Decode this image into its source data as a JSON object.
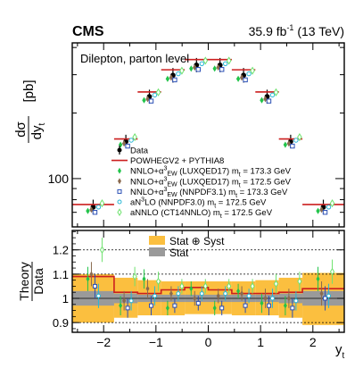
{
  "header": {
    "experiment": "CMS",
    "luminosity_prefix": "35.9 fb",
    "luminosity_exp": "-1",
    "luminosity_suffix": " (13 TeV)"
  },
  "chart_data": [
    {
      "type": "scatter",
      "panel": "main",
      "annotation": "Dilepton, parton level",
      "ylabel_num": "dσ",
      "ylabel_den": "dy",
      "ylabel_den_sub": "t",
      "ylabel_unit": "[pb]",
      "ylim": [
        60,
        420
      ],
      "yscale": "log",
      "yticks": [
        100
      ],
      "xlim": [
        -2.6,
        2.6
      ],
      "bin_edges": [
        -2.6,
        -1.8,
        -1.35,
        -0.9,
        -0.45,
        0.0,
        0.45,
        0.9,
        1.35,
        1.8,
        2.6
      ],
      "bin_centers": [
        -2.2,
        -1.575,
        -1.125,
        -0.675,
        -0.225,
        0.225,
        0.675,
        1.125,
        1.575,
        2.2
      ],
      "series": [
        {
          "name": "Data",
          "marker": "dot",
          "color": "#000000",
          "values": [
            74,
            148,
            238,
            298,
            332,
            332,
            298,
            238,
            148,
            74
          ],
          "err_lo": [
            5,
            10,
            17,
            22,
            24,
            24,
            22,
            17,
            10,
            5
          ],
          "err_hi": [
            6,
            11,
            18,
            24,
            26,
            26,
            24,
            18,
            11,
            6
          ]
        },
        {
          "name": "POWHEGV2 + PYTHIA8",
          "marker": "line",
          "color": "#cc1f1f",
          "values": [
            76,
            152,
            250,
            316,
            352,
            352,
            316,
            250,
            152,
            76
          ]
        },
        {
          "name": "NNLO+α³EW (LUXQED17) mt = 173.3 GeV",
          "marker": "diamond",
          "color": "#22c44a",
          "values": [
            71,
            143,
            229,
            287,
            320,
            320,
            287,
            229,
            143,
            71
          ]
        },
        {
          "name": "NNLO+α³EW (LUXQED17) mt = 172.5 GeV",
          "marker": "diamond",
          "color": "#8a6a4f",
          "values": [
            72,
            145,
            232,
            291,
            324,
            324,
            291,
            232,
            145,
            72
          ]
        },
        {
          "name": "NNLO+α³EW (NNPDF3.1) mt = 173.3 GeV",
          "marker": "open-square",
          "color": "#2a4fb5",
          "values": [
            70,
            141,
            227,
            284,
            317,
            317,
            284,
            227,
            141,
            70
          ]
        },
        {
          "name": "aN³LO (NNPDF3.0) mt = 172.5 GeV",
          "marker": "open-circle",
          "color": "#29b7d6",
          "values": [
            74,
            150,
            242,
            303,
            337,
            337,
            303,
            242,
            150,
            74
          ]
        },
        {
          "name": "aNNLO (CT14NNLO) mt = 172.5 GeV",
          "marker": "open-diamond",
          "color": "#6fe26f",
          "values": [
            77,
            155,
            249,
            313,
            348,
            348,
            313,
            249,
            155,
            77
          ]
        }
      ],
      "legend": [
        {
          "text": "Data",
          "marker": "dot",
          "color": "#000000"
        },
        {
          "text": "POWHEGV2 + PYTHIA8",
          "marker": "line",
          "color": "#cc1f1f"
        },
        {
          "text": "NNLO+α",
          "sup": "3",
          "sub": "EW",
          "rest": " (LUXQED17) m",
          "rsub": "t",
          "tail": " = 173.3 GeV",
          "marker": "diamond",
          "color": "#22c44a"
        },
        {
          "text": "NNLO+α",
          "sup": "3",
          "sub": "EW",
          "rest": " (LUXQED17) m",
          "rsub": "t",
          "tail": " = 172.5 GeV",
          "marker": "diamond",
          "color": "#8a6a4f"
        },
        {
          "text": "NNLO+α",
          "sup": "3",
          "sub": "EW",
          "rest": " (NNPDF3.1) m",
          "rsub": "t",
          "tail": " = 173.3 GeV",
          "marker": "open-square",
          "color": "#2a4fb5"
        },
        {
          "text": "aN",
          "sup": "3",
          "rest": "LO (NNPDF3.0) m",
          "rsub": "t",
          "tail": " = 172.5 GeV",
          "marker": "open-circle",
          "color": "#29b7d6"
        },
        {
          "text": "aNNLO (CT14NNLO) m",
          "rsub": "t",
          "tail": " = 172.5 GeV",
          "marker": "open-diamond",
          "color": "#6fe26f"
        }
      ]
    },
    {
      "type": "scatter",
      "panel": "ratio",
      "ylabel_num": "Theory",
      "ylabel_den": "Data",
      "xlabel": "y",
      "xlabel_sub": "t",
      "ylim": [
        0.86,
        1.28
      ],
      "yticks": [
        "0.9",
        "1",
        "1.1",
        "1.2"
      ],
      "yticks_values": [
        0.9,
        1.0,
        1.1,
        1.2
      ],
      "xticks": [
        "−2",
        "−1",
        "0",
        "1",
        "2"
      ],
      "xticks_values": [
        -2,
        -1,
        0,
        1,
        2
      ],
      "xlim": [
        -2.6,
        2.6
      ],
      "dashed_gridlines": [
        0.9,
        1.1,
        1.2
      ],
      "bin_edges": [
        -2.6,
        -1.8,
        -1.35,
        -0.9,
        -0.45,
        0.0,
        0.45,
        0.9,
        1.35,
        1.8,
        2.6
      ],
      "bin_centers": [
        -2.2,
        -1.575,
        -1.125,
        -0.675,
        -0.225,
        0.225,
        0.675,
        1.125,
        1.575,
        2.2
      ],
      "bands": [
        {
          "name": "Stat ⊕ Syst",
          "color": "#fbbf3f",
          "lo": [
            0.9,
            0.92,
            0.93,
            0.93,
            0.935,
            0.935,
            0.93,
            0.93,
            0.92,
            0.89
          ],
          "hi": [
            1.1,
            1.085,
            1.075,
            1.07,
            1.07,
            1.07,
            1.07,
            1.075,
            1.085,
            1.105
          ]
        },
        {
          "name": "Stat",
          "color": "#9a9a9a",
          "lo": [
            0.97,
            0.98,
            0.985,
            0.985,
            0.985,
            0.985,
            0.985,
            0.985,
            0.98,
            0.97
          ],
          "hi": [
            1.03,
            1.02,
            1.015,
            1.015,
            1.015,
            1.015,
            1.015,
            1.015,
            1.02,
            1.03
          ]
        }
      ],
      "series": [
        {
          "name": "POWHEGV2 + PYTHIA8",
          "marker": "line",
          "color": "#cc1f1f",
          "values": [
            1.09,
            1.025,
            1.02,
            1.035,
            1.045,
            1.035,
            1.02,
            1.02,
            1.025,
            1.04
          ]
        },
        {
          "name": "NNLO+α³EW (LUXQED17) mt = 173.3 GeV",
          "marker": "diamond",
          "color": "#22c44a",
          "values": [
            1.08,
            0.97,
            1.08,
            0.96,
            1.04,
            0.96,
            1.03,
            0.98,
            0.97,
            1.08
          ],
          "err": [
            0.05,
            0.04,
            0.04,
            0.03,
            0.03,
            0.03,
            0.03,
            0.04,
            0.04,
            0.05
          ]
        },
        {
          "name": "NNLO+α³EW (LUXQED17) mt = 172.5 GeV",
          "marker": "diamond",
          "color": "#8a6a4f",
          "values": [
            1.1,
            0.99,
            1.04,
            1.02,
            1.0,
            1.01,
            1.02,
            1.0,
            1.0,
            1.02
          ],
          "err": [
            0.05,
            0.04,
            0.04,
            0.03,
            0.03,
            0.03,
            0.03,
            0.04,
            0.04,
            0.05
          ]
        },
        {
          "name": "NNLO+α³EW (NNPDF3.1) mt = 173.3 GeV",
          "marker": "open-square",
          "color": "#2a4fb5",
          "values": [
            1.05,
            0.96,
            0.97,
            0.97,
            0.98,
            0.96,
            0.97,
            0.97,
            0.96,
            1.0
          ],
          "err": [
            0.05,
            0.04,
            0.04,
            0.03,
            0.03,
            0.03,
            0.03,
            0.04,
            0.04,
            0.05
          ]
        },
        {
          "name": "aN³LO (NNPDF3.0) mt = 172.5 GeV",
          "marker": "open-circle",
          "color": "#29b7d6",
          "values": [
            1.01,
            0.99,
            1.01,
            1.02,
            1.02,
            1.02,
            1.01,
            1.0,
            0.99,
            1.01
          ],
          "err": [
            0.05,
            0.04,
            0.04,
            0.03,
            0.03,
            0.03,
            0.03,
            0.04,
            0.04,
            0.05
          ]
        },
        {
          "name": "aNNLO (CT14NNLO) mt = 172.5 GeV",
          "marker": "open-diamond",
          "color": "#6fe26f",
          "values": [
            1.2,
            1.09,
            1.07,
            1.05,
            1.05,
            1.05,
            1.05,
            1.06,
            1.07,
            1.11
          ],
          "err": [
            0.05,
            0.04,
            0.04,
            0.03,
            0.03,
            0.03,
            0.03,
            0.04,
            0.04,
            0.05
          ]
        }
      ],
      "legend": [
        {
          "text": "Stat ⊕ Syst",
          "marker": "box",
          "color": "#fbbf3f"
        },
        {
          "text": "Stat",
          "marker": "box",
          "color": "#9a9a9a"
        }
      ]
    }
  ]
}
